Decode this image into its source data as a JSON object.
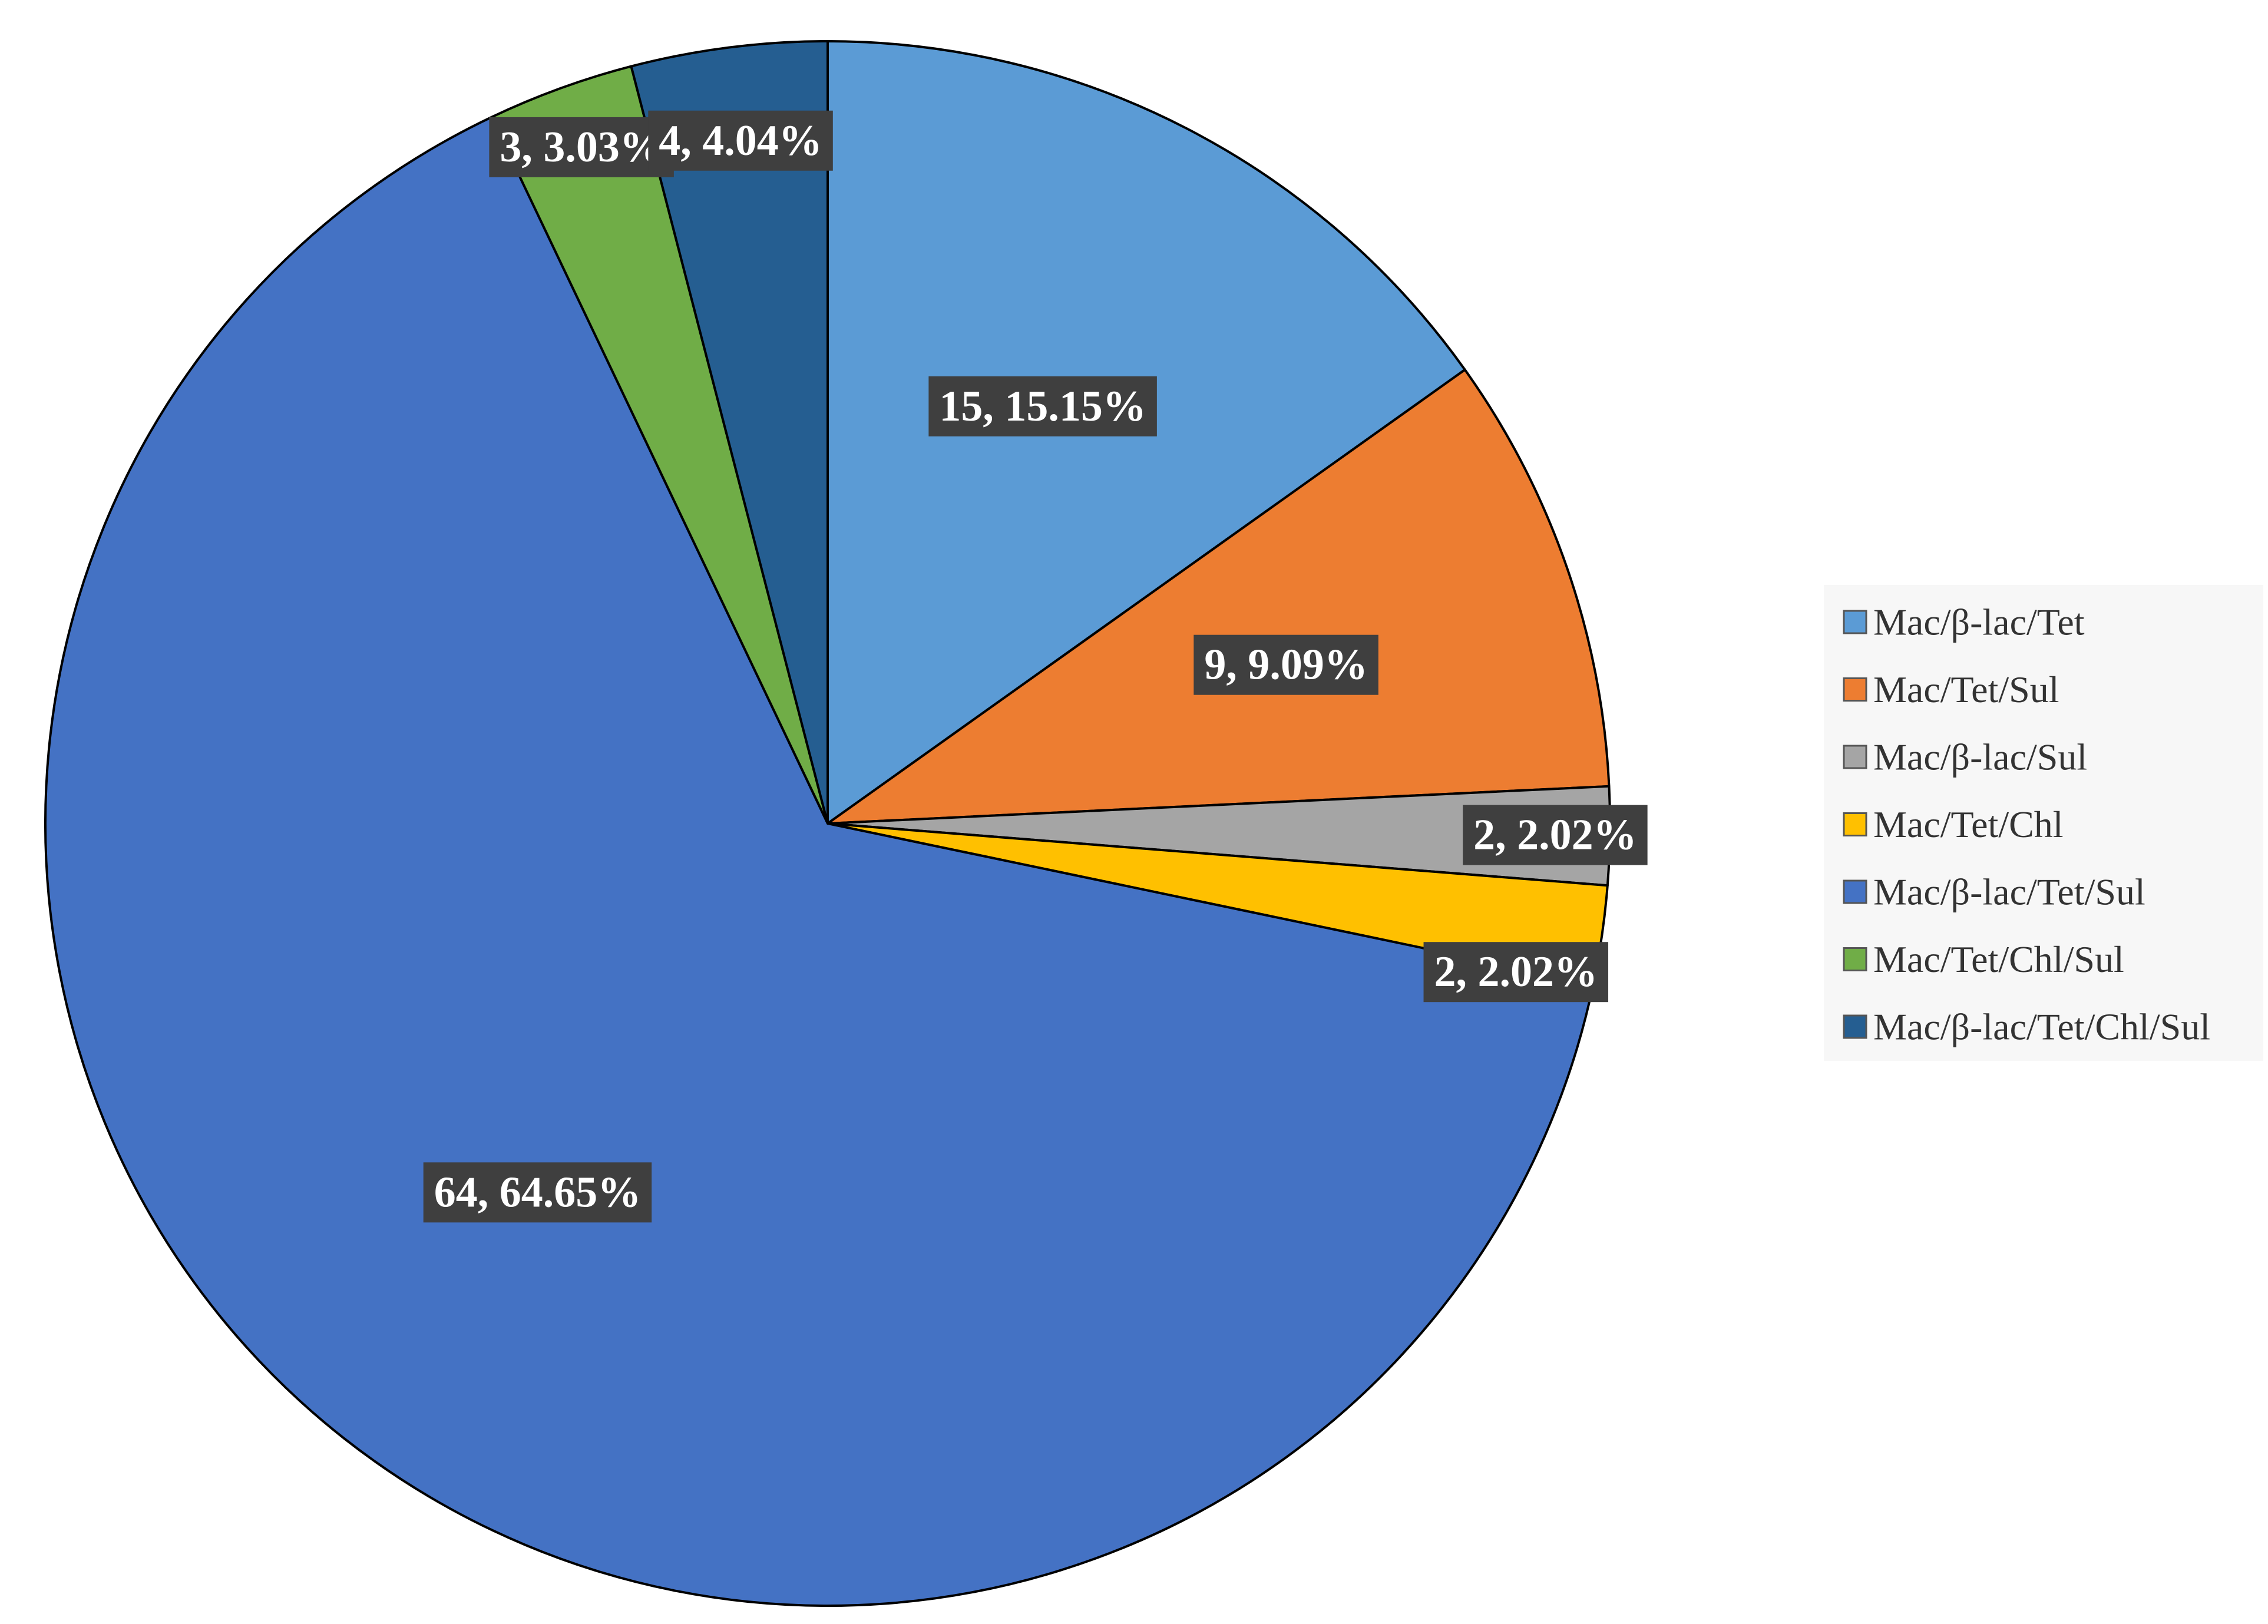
{
  "chart_data": {
    "type": "pie",
    "title": "",
    "legend_position": "right",
    "start_angle_deg": 0,
    "direction": "clockwise",
    "slices": [
      {
        "name": "Mac/β-lac/Tet",
        "value": 15,
        "percent": "15.15%",
        "label": "15, 15.15%",
        "color": "#5b9bd5"
      },
      {
        "name": "Mac/Tet/Sul",
        "value": 9,
        "percent": "9.09%",
        "label": "9, 9.09%",
        "color": "#ed7d31"
      },
      {
        "name": "Mac/β-lac/Sul",
        "value": 2,
        "percent": "2.02%",
        "label": "2, 2.02%",
        "color": "#a5a5a5"
      },
      {
        "name": "Mac/Tet/Chl",
        "value": 2,
        "percent": "2.02%",
        "label": "2, 2.02%",
        "color": "#ffc000"
      },
      {
        "name": "Mac/β-lac/Tet/Sul",
        "value": 64,
        "percent": "64.65%",
        "label": "64, 64.65%",
        "color": "#4472c4"
      },
      {
        "name": "Mac/Tet/Chl/Sul",
        "value": 3,
        "percent": "3.03%",
        "label": "3, 3.03%",
        "color": "#70ad47"
      },
      {
        "name": "Mac/β-lac/Tet/Chl/Sul",
        "value": 4,
        "percent": "4.04%",
        "label": "4, 4.04%",
        "color": "#255e91"
      }
    ]
  }
}
